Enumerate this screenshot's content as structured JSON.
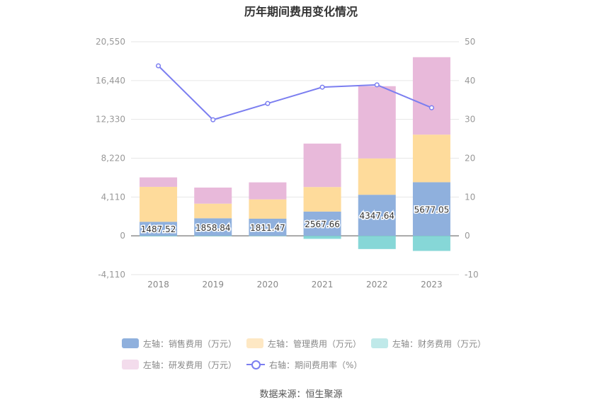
{
  "chart_data": {
    "type": "bar",
    "title": "历年期间费用变化情况",
    "categories": [
      "2018",
      "2019",
      "2020",
      "2021",
      "2022",
      "2023"
    ],
    "left_axis": {
      "ticks": [
        "20,550",
        "16,440",
        "12,330",
        "8,220",
        "4,110",
        "0",
        "-4,110"
      ],
      "ylim": [
        -4110,
        20550
      ]
    },
    "right_axis": {
      "ticks": [
        "50",
        "40",
        "30",
        "20",
        "10",
        "0",
        "-10"
      ],
      "ylim": [
        -10,
        50
      ]
    },
    "series": [
      {
        "name": "左轴：销售费用（万元）",
        "color": "#8fb0dd",
        "values": [
          1487.52,
          1858.84,
          1811.47,
          2567.66,
          4347.64,
          5677.05
        ],
        "labels": [
          "1487.52",
          "1858.84",
          "1811.47",
          "2567.66",
          "4347.64",
          "5677.05"
        ]
      },
      {
        "name": "左轴：管理费用（万元）",
        "color": "#fedb9b",
        "values": [
          3700,
          1550,
          2050,
          2600,
          3850,
          5040
        ]
      },
      {
        "name": "左轴：财务费用（万元）",
        "color": "#86d7d7",
        "values": [
          -60,
          -50,
          -40,
          -320,
          -1400,
          -1600
        ]
      },
      {
        "name": "左轴：研发费用（万元）",
        "color": "#e8b9da",
        "values": [
          1000,
          1700,
          1800,
          4600,
          7650,
          8200
        ]
      },
      {
        "name": "右轴：期间费用率（%）",
        "color": "#7b7ef0",
        "axis": "right",
        "values": [
          43.8,
          29.9,
          34.1,
          38.3,
          38.9,
          33.0
        ]
      }
    ],
    "grid": true,
    "legend_position": "bottom"
  },
  "source_text": "数据来源：恒生聚源"
}
